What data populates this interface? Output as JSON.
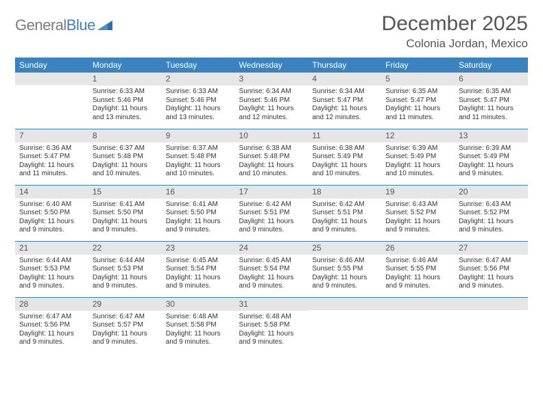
{
  "brand": {
    "part1": "General",
    "part2": "Blue"
  },
  "title": "December 2025",
  "location": "Colonia Jordan, Mexico",
  "colors": {
    "header_bg": "#3b83c0",
    "header_text": "#ffffff",
    "daynum_bg": "#e6e6e6",
    "text": "#333333",
    "title_text": "#555555",
    "row_divider": "#3b83c0",
    "logo_gray": "#7a7a7a",
    "logo_blue": "#3b83c0"
  },
  "typography": {
    "title_fontsize": 30,
    "location_fontsize": 17,
    "header_fontsize": 12,
    "daynum_fontsize": 12,
    "body_fontsize": 10
  },
  "weekdays": [
    "Sunday",
    "Monday",
    "Tuesday",
    "Wednesday",
    "Thursday",
    "Friday",
    "Saturday"
  ],
  "weeks": [
    [
      {
        "n": "",
        "sun": "",
        "set": "",
        "day": ""
      },
      {
        "n": "1",
        "sun": "Sunrise: 6:33 AM",
        "set": "Sunset: 5:46 PM",
        "day": "Daylight: 11 hours and 13 minutes."
      },
      {
        "n": "2",
        "sun": "Sunrise: 6:33 AM",
        "set": "Sunset: 5:46 PM",
        "day": "Daylight: 11 hours and 13 minutes."
      },
      {
        "n": "3",
        "sun": "Sunrise: 6:34 AM",
        "set": "Sunset: 5:46 PM",
        "day": "Daylight: 11 hours and 12 minutes."
      },
      {
        "n": "4",
        "sun": "Sunrise: 6:34 AM",
        "set": "Sunset: 5:47 PM",
        "day": "Daylight: 11 hours and 12 minutes."
      },
      {
        "n": "5",
        "sun": "Sunrise: 6:35 AM",
        "set": "Sunset: 5:47 PM",
        "day": "Daylight: 11 hours and 11 minutes."
      },
      {
        "n": "6",
        "sun": "Sunrise: 6:35 AM",
        "set": "Sunset: 5:47 PM",
        "day": "Daylight: 11 hours and 11 minutes."
      }
    ],
    [
      {
        "n": "7",
        "sun": "Sunrise: 6:36 AM",
        "set": "Sunset: 5:47 PM",
        "day": "Daylight: 11 hours and 11 minutes."
      },
      {
        "n": "8",
        "sun": "Sunrise: 6:37 AM",
        "set": "Sunset: 5:48 PM",
        "day": "Daylight: 11 hours and 10 minutes."
      },
      {
        "n": "9",
        "sun": "Sunrise: 6:37 AM",
        "set": "Sunset: 5:48 PM",
        "day": "Daylight: 11 hours and 10 minutes."
      },
      {
        "n": "10",
        "sun": "Sunrise: 6:38 AM",
        "set": "Sunset: 5:48 PM",
        "day": "Daylight: 11 hours and 10 minutes."
      },
      {
        "n": "11",
        "sun": "Sunrise: 6:38 AM",
        "set": "Sunset: 5:49 PM",
        "day": "Daylight: 11 hours and 10 minutes."
      },
      {
        "n": "12",
        "sun": "Sunrise: 6:39 AM",
        "set": "Sunset: 5:49 PM",
        "day": "Daylight: 11 hours and 10 minutes."
      },
      {
        "n": "13",
        "sun": "Sunrise: 6:39 AM",
        "set": "Sunset: 5:49 PM",
        "day": "Daylight: 11 hours and 9 minutes."
      }
    ],
    [
      {
        "n": "14",
        "sun": "Sunrise: 6:40 AM",
        "set": "Sunset: 5:50 PM",
        "day": "Daylight: 11 hours and 9 minutes."
      },
      {
        "n": "15",
        "sun": "Sunrise: 6:41 AM",
        "set": "Sunset: 5:50 PM",
        "day": "Daylight: 11 hours and 9 minutes."
      },
      {
        "n": "16",
        "sun": "Sunrise: 6:41 AM",
        "set": "Sunset: 5:50 PM",
        "day": "Daylight: 11 hours and 9 minutes."
      },
      {
        "n": "17",
        "sun": "Sunrise: 6:42 AM",
        "set": "Sunset: 5:51 PM",
        "day": "Daylight: 11 hours and 9 minutes."
      },
      {
        "n": "18",
        "sun": "Sunrise: 6:42 AM",
        "set": "Sunset: 5:51 PM",
        "day": "Daylight: 11 hours and 9 minutes."
      },
      {
        "n": "19",
        "sun": "Sunrise: 6:43 AM",
        "set": "Sunset: 5:52 PM",
        "day": "Daylight: 11 hours and 9 minutes."
      },
      {
        "n": "20",
        "sun": "Sunrise: 6:43 AM",
        "set": "Sunset: 5:52 PM",
        "day": "Daylight: 11 hours and 9 minutes."
      }
    ],
    [
      {
        "n": "21",
        "sun": "Sunrise: 6:44 AM",
        "set": "Sunset: 5:53 PM",
        "day": "Daylight: 11 hours and 9 minutes."
      },
      {
        "n": "22",
        "sun": "Sunrise: 6:44 AM",
        "set": "Sunset: 5:53 PM",
        "day": "Daylight: 11 hours and 9 minutes."
      },
      {
        "n": "23",
        "sun": "Sunrise: 6:45 AM",
        "set": "Sunset: 5:54 PM",
        "day": "Daylight: 11 hours and 9 minutes."
      },
      {
        "n": "24",
        "sun": "Sunrise: 6:45 AM",
        "set": "Sunset: 5:54 PM",
        "day": "Daylight: 11 hours and 9 minutes."
      },
      {
        "n": "25",
        "sun": "Sunrise: 6:46 AM",
        "set": "Sunset: 5:55 PM",
        "day": "Daylight: 11 hours and 9 minutes."
      },
      {
        "n": "26",
        "sun": "Sunrise: 6:46 AM",
        "set": "Sunset: 5:55 PM",
        "day": "Daylight: 11 hours and 9 minutes."
      },
      {
        "n": "27",
        "sun": "Sunrise: 6:47 AM",
        "set": "Sunset: 5:56 PM",
        "day": "Daylight: 11 hours and 9 minutes."
      }
    ],
    [
      {
        "n": "28",
        "sun": "Sunrise: 6:47 AM",
        "set": "Sunset: 5:56 PM",
        "day": "Daylight: 11 hours and 9 minutes."
      },
      {
        "n": "29",
        "sun": "Sunrise: 6:47 AM",
        "set": "Sunset: 5:57 PM",
        "day": "Daylight: 11 hours and 9 minutes."
      },
      {
        "n": "30",
        "sun": "Sunrise: 6:48 AM",
        "set": "Sunset: 5:58 PM",
        "day": "Daylight: 11 hours and 9 minutes."
      },
      {
        "n": "31",
        "sun": "Sunrise: 6:48 AM",
        "set": "Sunset: 5:58 PM",
        "day": "Daylight: 11 hours and 9 minutes."
      },
      {
        "n": "",
        "sun": "",
        "set": "",
        "day": ""
      },
      {
        "n": "",
        "sun": "",
        "set": "",
        "day": ""
      },
      {
        "n": "",
        "sun": "",
        "set": "",
        "day": ""
      }
    ]
  ]
}
